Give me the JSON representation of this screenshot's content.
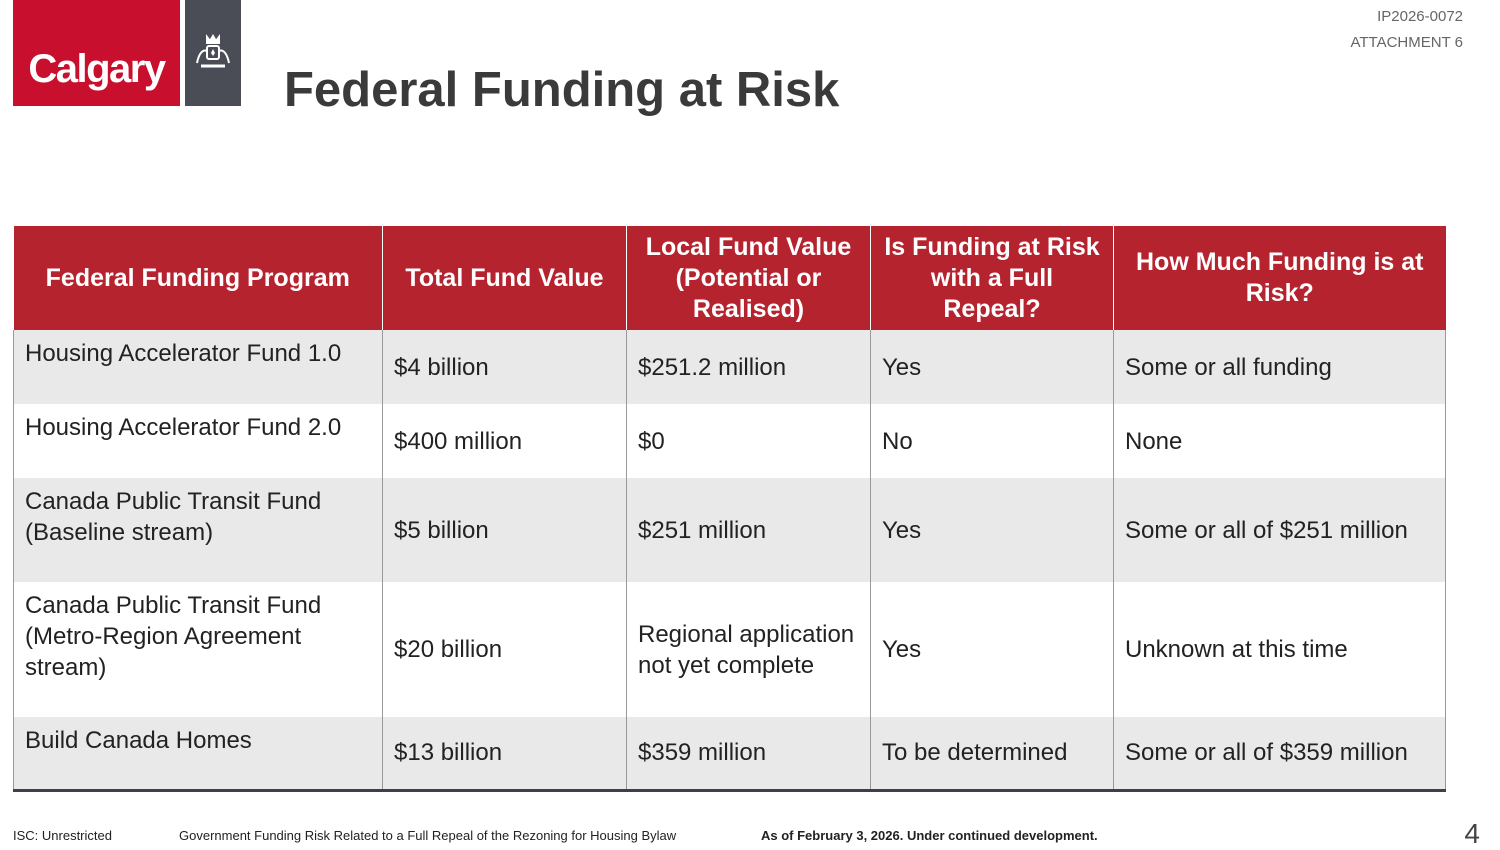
{
  "logo": {
    "text": "Calgary",
    "crest": "city-crest"
  },
  "header": {
    "ref": "IP2026-0072",
    "attachment": "ATTACHMENT 6",
    "title": "Federal Funding at Risk"
  },
  "table": {
    "headers": [
      "Federal Funding Program",
      "Total Fund Value",
      "Local Fund Value (Potential or Realised)",
      "Is Funding at Risk with a Full Repeal?",
      "How Much Funding is at Risk?"
    ],
    "rows": [
      [
        "Housing Accelerator Fund 1.0",
        "$4 billion",
        "$251.2 million",
        "Yes",
        "Some or all funding"
      ],
      [
        "Housing Accelerator Fund 2.0",
        "$400 million",
        "$0",
        "No",
        "None"
      ],
      [
        "Canada Public Transit Fund (Baseline stream)",
        "$5 billion",
        "$251 million",
        "Yes",
        "Some or all of $251 million"
      ],
      [
        "Canada Public Transit Fund (Metro-Region Agreement stream)",
        "$20 billion",
        "Regional application not yet complete",
        "Yes",
        "Unknown at this time"
      ],
      [
        "Build Canada Homes",
        "$13 billion",
        "$359 million",
        "To be determined",
        "Some or all of $359 million"
      ]
    ]
  },
  "footer": {
    "classification": "ISC: Unrestricted",
    "subject": "Government Funding Risk Related to a Full Repeal of the Rezoning for Housing Bylaw",
    "status": "As of February 3, 2026. Under continued development.",
    "page": "4"
  },
  "colors": {
    "brand_red": "#c8102e",
    "header_red": "#b5232f",
    "crest_grey": "#4a4d55",
    "row_grey": "#e9e9e9"
  }
}
